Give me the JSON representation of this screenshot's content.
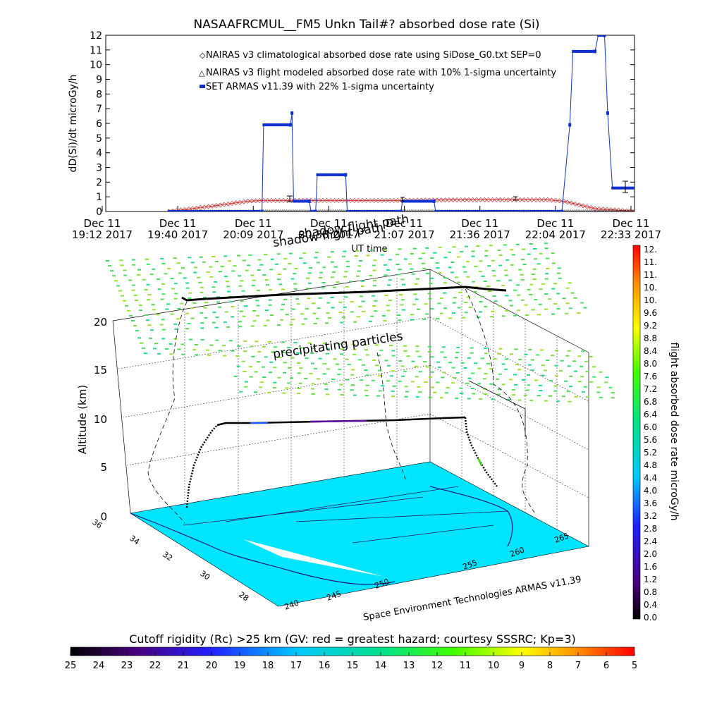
{
  "chart_data": [
    {
      "type": "line",
      "title": "NASAAFRCMUL__FM5 Unkn Tail#? absorbed dose rate (Si)",
      "ylabel": "dD(Si)/dt microGy/h",
      "xlabel": "UT time",
      "ylim": [
        0,
        12
      ],
      "y_ticks": [
        "0",
        "1",
        "2",
        "3",
        "4",
        "5",
        "6",
        "7",
        "8",
        "9",
        "10",
        "11",
        "12"
      ],
      "x_ticks": [
        {
          "top": "Dec 11",
          "bottom": "19:12 2017"
        },
        {
          "top": "Dec 11",
          "bottom": "19:40 2017"
        },
        {
          "top": "Dec 11",
          "bottom": "20:09 2017"
        },
        {
          "top": "Dec 11",
          "bottom": "20:38 2017"
        },
        {
          "top": "Dec 11",
          "bottom": "21:07 2017"
        },
        {
          "top": "Dec 11",
          "bottom": "21:36 2017"
        },
        {
          "top": "Dec 11",
          "bottom": "22:04 2017"
        },
        {
          "top": "Dec 11",
          "bottom": "22:33 2017"
        }
      ],
      "legend": [
        "NAIRAS v3 climatological absorbed dose rate using SiDose_G0.txt SEP=0",
        "NAIRAS v3 flight modeled absorbed dose rate with 10% 1-sigma uncertainty",
        "SET ARMAS v11.39 with 22% 1-sigma uncertainty"
      ],
      "series": [
        {
          "name": "NAIRAS v3 climatological absorbed dose rate using SiDose_G0.txt SEP=0",
          "color": "#cc3333",
          "x_min": [
            19.6,
            19.9,
            20.1,
            20.2,
            21.0,
            21.5,
            22.0,
            22.1,
            22.3,
            22.5,
            22.6
          ],
          "y": [
            0.0,
            0.4,
            0.7,
            0.75,
            0.75,
            0.8,
            0.8,
            0.7,
            0.2,
            0.05,
            0.0
          ]
        },
        {
          "name": "NAIRAS v3 flight modeled absorbed dose rate with 10% 1-sigma uncertainty",
          "color": "#000000",
          "x_min": [
            19.6,
            22.6
          ],
          "y": [
            0.0,
            0.0
          ]
        },
        {
          "name": "SET ARMAS v11.39 with 22% 1-sigma uncertainty",
          "color": "#1030d0",
          "points": [
            [
              19.6,
              0.0
            ],
            [
              20.19,
              0.0
            ],
            [
              20.2,
              5.9
            ],
            [
              20.37,
              5.9
            ],
            [
              20.38,
              6.7
            ],
            [
              20.39,
              0.7
            ],
            [
              20.49,
              0.7
            ],
            [
              20.5,
              0.0
            ],
            [
              20.53,
              0.0
            ],
            [
              20.54,
              2.5
            ],
            [
              20.72,
              2.5
            ],
            [
              20.73,
              0.0
            ],
            [
              21.07,
              0.0
            ],
            [
              21.08,
              0.7
            ],
            [
              21.28,
              0.7
            ],
            [
              21.29,
              0.0
            ],
            [
              22.09,
              0.0
            ],
            [
              22.14,
              5.9
            ],
            [
              22.16,
              10.9
            ],
            [
              22.3,
              10.9
            ],
            [
              22.32,
              12.0
            ],
            [
              22.36,
              12.0
            ],
            [
              22.38,
              6.7
            ],
            [
              22.41,
              1.6
            ],
            [
              22.56,
              1.6
            ]
          ]
        }
      ]
    },
    {
      "type": "scatter",
      "subtype": "3d-flight-track",
      "zlabel": "Altitude (km)",
      "z_ticks": [
        "0",
        "5",
        "10",
        "15",
        "20"
      ],
      "lat_ticks": [
        "28",
        "30",
        "32",
        "34",
        "36"
      ],
      "lon_ticks": [
        "240",
        "245",
        "250",
        "255",
        "260",
        "265"
      ],
      "annotations": [
        "shadow flight path",
        "precipitating particles",
        "Space Environment Technologies ARMAS v11.39"
      ],
      "colorbar": {
        "label": "flight absorbed dose rate microGy/h",
        "ticks": [
          "12.",
          "11.",
          "11.",
          "10.",
          "10.",
          "9.6",
          "9.2",
          "8.8",
          "8.4",
          "8.0",
          "7.6",
          "7.2",
          "6.8",
          "6.4",
          "6.0",
          "5.6",
          "5.2",
          "4.8",
          "4.4",
          "4.0",
          "3.6",
          "3.2",
          "2.8",
          "2.4",
          "2.0",
          "1.6",
          "1.2",
          "0.8",
          "0.4",
          "0.0"
        ],
        "range": [
          0,
          12
        ]
      },
      "map_color": "#00e5ff"
    },
    {
      "type": "colorbar",
      "title": "Cutoff rigidity (Rc) >25 km (GV: red = greatest hazard; courtesy SSSRC; Kp=3)",
      "ticks": [
        "25",
        "24",
        "23",
        "22",
        "21",
        "20",
        "19",
        "18",
        "17",
        "16",
        "15",
        "14",
        "13",
        "12",
        "11",
        "10",
        "9",
        "8",
        "7",
        "6",
        "5"
      ],
      "range": [
        25,
        5
      ]
    }
  ]
}
